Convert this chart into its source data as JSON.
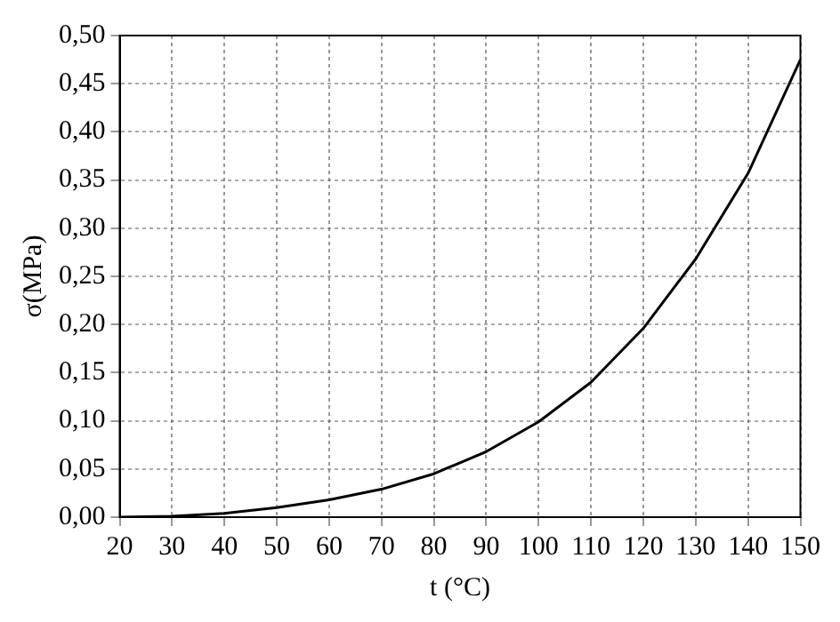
{
  "chart_data": {
    "type": "line",
    "xlabel": "t (°C)",
    "ylabel": "σ(MPa)",
    "x": [
      20,
      30,
      40,
      50,
      60,
      70,
      80,
      90,
      100,
      110,
      120,
      130,
      140,
      150
    ],
    "series": [
      {
        "color": "#000000",
        "values": [
          0,
          0.001,
          0.004,
          0.01,
          0.018,
          0.029,
          0.045,
          0.068,
          0.099,
          0.14,
          0.196,
          0.268,
          0.357,
          0.475
        ]
      }
    ],
    "xlim": [
      20,
      150
    ],
    "xticks": [
      20,
      30,
      40,
      50,
      60,
      70,
      80,
      90,
      100,
      110,
      120,
      130,
      140,
      150
    ],
    "ylim": [
      0,
      0.5
    ],
    "yticks": [
      {
        "value": 0,
        "label": "0,00"
      },
      {
        "value": 0.05,
        "label": "0,05"
      },
      {
        "value": 0.1,
        "label": "0,10"
      },
      {
        "value": 0.15,
        "label": "0,15"
      },
      {
        "value": 0.2,
        "label": "0,20"
      },
      {
        "value": 0.25,
        "label": "0,25"
      },
      {
        "value": 0.3,
        "label": "0,30"
      },
      {
        "value": 0.35,
        "label": "0,35"
      },
      {
        "value": 0.4,
        "label": "0,40"
      },
      {
        "value": 0.45,
        "label": "0,45"
      },
      {
        "value": 0.5,
        "label": "0,50"
      }
    ],
    "grid": true,
    "legend": false,
    "marker": "none",
    "line_style": "solid"
  }
}
